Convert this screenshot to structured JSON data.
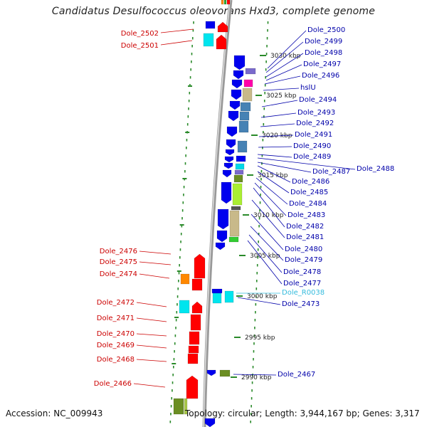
{
  "title": "Candidatus Desulfococcus oleovorans Hxd3, complete genome",
  "footer": {
    "accession": "Accession: NC_009943",
    "info": "Topology: circular; Length: 3,944,167 bp; Genes: 3,317"
  },
  "colors": {
    "left_label": "#cc0000",
    "right_label": "#0000aa",
    "rna_label": "#33bbdd",
    "backbone": "#888888",
    "grid": "#228822"
  },
  "ticks": [
    "3030 kbp",
    "3025 kbp",
    "3020 kbp",
    "3015 kbp",
    "3010 kbp",
    "3005 kbp",
    "3000 kbp",
    "2995 kbp",
    "2990 kbp"
  ],
  "labels_left": [
    "Dole_2502",
    "Dole_2501",
    "Dole_2476",
    "Dole_2475",
    "Dole_2474",
    "Dole_2472",
    "Dole_2471",
    "Dole_2470",
    "Dole_2469",
    "Dole_2468",
    "Dole_2466"
  ],
  "labels_right": [
    "Dole_2500",
    "Dole_2499",
    "Dole_2498",
    "Dole_2497",
    "Dole_2496",
    "hslU",
    "Dole_2494",
    "Dole_2493",
    "Dole_2492",
    "Dole_2491",
    "Dole_2490",
    "Dole_2489",
    "Dole_2488",
    "Dole_2487",
    "Dole_2486",
    "Dole_2485",
    "Dole_2484",
    "Dole_2483",
    "Dole_2482",
    "Dole_2481",
    "Dole_2480",
    "Dole_2479",
    "Dole_2478",
    "Dole_2477",
    "Dole_R0038",
    "Dole_2473",
    "Dole_2467"
  ]
}
